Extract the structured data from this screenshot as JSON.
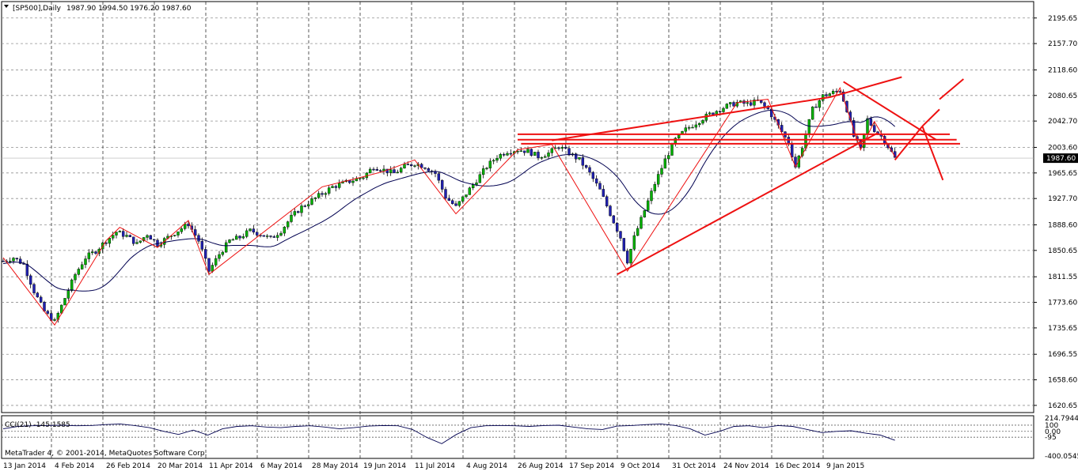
{
  "window": {
    "title": "[SP500],Daily",
    "ohlc": "1987.90 1994.50 1976.20 1987.60"
  },
  "indicator": {
    "label": "CCI(21) -145.1585",
    "scale_labels": [
      "214.7944",
      "100",
      "0.00",
      "-95",
      "-400.0545"
    ]
  },
  "footer": {
    "copyright": "MetaTrader 4, © 2001-2014, MetaQuotes Software Corp."
  },
  "colors": {
    "bull": "#00b000",
    "bear": "#2020b0",
    "trendline": "#ee1111",
    "ma": "#000050"
  },
  "chart_data": {
    "type": "line",
    "instrument": "SP500",
    "timeframe": "Daily",
    "last_price": 1987.6,
    "last_price_label": "1987.60",
    "price_ticks": [
      2195.65,
      2157.7,
      2118.6,
      2080.65,
      2042.7,
      2003.6,
      1965.65,
      1927.7,
      1888.6,
      1850.65,
      1811.55,
      1773.6,
      1735.65,
      1696.55,
      1658.6,
      1620.65
    ],
    "price_tick_labels": [
      "2195.65",
      "2157.70",
      "2118.60",
      "2080.65",
      "2042.70",
      "2003.60",
      "1965.65",
      "1927.70",
      "1888.60",
      "1850.65",
      "1811.55",
      "1773.60",
      "1735.65",
      "1696.55",
      "1658.60",
      "1620.65"
    ],
    "date_labels": [
      "13 Jan 2014",
      "4 Feb 2014",
      "26 Feb 2014",
      "20 Mar 2014",
      "11 Apr 2014",
      "6 May 2014",
      "28 May 2014",
      "19 Jun 2014",
      "11 Jul 2014",
      "4 Aug 2014",
      "26 Aug 2014",
      "17 Sep 2014",
      "9 Oct 2014",
      "31 Oct 2014",
      "24 Nov 2014",
      "16 Dec 2014",
      "9 Jan 2015"
    ],
    "close_series": [
      {
        "d": 0,
        "v": 1835
      },
      {
        "d": 3,
        "v": 1840
      },
      {
        "d": 6,
        "v": 1830
      },
      {
        "d": 9,
        "v": 1790
      },
      {
        "d": 12,
        "v": 1760
      },
      {
        "d": 15,
        "v": 1745
      },
      {
        "d": 18,
        "v": 1780
      },
      {
        "d": 21,
        "v": 1815
      },
      {
        "d": 24,
        "v": 1840
      },
      {
        "d": 27,
        "v": 1850
      },
      {
        "d": 30,
        "v": 1865
      },
      {
        "d": 33,
        "v": 1878
      },
      {
        "d": 36,
        "v": 1872
      },
      {
        "d": 39,
        "v": 1860
      },
      {
        "d": 42,
        "v": 1875
      },
      {
        "d": 45,
        "v": 1860
      },
      {
        "d": 48,
        "v": 1870
      },
      {
        "d": 51,
        "v": 1880
      },
      {
        "d": 54,
        "v": 1890
      },
      {
        "d": 57,
        "v": 1865
      },
      {
        "d": 60,
        "v": 1820
      },
      {
        "d": 63,
        "v": 1845
      },
      {
        "d": 66,
        "v": 1865
      },
      {
        "d": 69,
        "v": 1870
      },
      {
        "d": 72,
        "v": 1880
      },
      {
        "d": 75,
        "v": 1875
      },
      {
        "d": 78,
        "v": 1868
      },
      {
        "d": 81,
        "v": 1880
      },
      {
        "d": 84,
        "v": 1900
      },
      {
        "d": 87,
        "v": 1915
      },
      {
        "d": 90,
        "v": 1925
      },
      {
        "d": 93,
        "v": 1935
      },
      {
        "d": 96,
        "v": 1945
      },
      {
        "d": 99,
        "v": 1950
      },
      {
        "d": 102,
        "v": 1955
      },
      {
        "d": 105,
        "v": 1960
      },
      {
        "d": 108,
        "v": 1975
      },
      {
        "d": 111,
        "v": 1970
      },
      {
        "d": 114,
        "v": 1965
      },
      {
        "d": 117,
        "v": 1975
      },
      {
        "d": 120,
        "v": 1980
      },
      {
        "d": 123,
        "v": 1975
      },
      {
        "d": 126,
        "v": 1965
      },
      {
        "d": 129,
        "v": 1930
      },
      {
        "d": 132,
        "v": 1915
      },
      {
        "d": 135,
        "v": 1935
      },
      {
        "d": 138,
        "v": 1955
      },
      {
        "d": 141,
        "v": 1975
      },
      {
        "d": 144,
        "v": 1990
      },
      {
        "d": 147,
        "v": 1998
      },
      {
        "d": 150,
        "v": 2000
      },
      {
        "d": 153,
        "v": 1998
      },
      {
        "d": 156,
        "v": 1990
      },
      {
        "d": 159,
        "v": 1995
      },
      {
        "d": 162,
        "v": 2005
      },
      {
        "d": 165,
        "v": 1995
      },
      {
        "d": 168,
        "v": 1985
      },
      {
        "d": 171,
        "v": 1965
      },
      {
        "d": 174,
        "v": 1940
      },
      {
        "d": 177,
        "v": 1905
      },
      {
        "d": 180,
        "v": 1870
      },
      {
        "d": 182,
        "v": 1835
      },
      {
        "d": 184,
        "v": 1870
      },
      {
        "d": 187,
        "v": 1910
      },
      {
        "d": 190,
        "v": 1950
      },
      {
        "d": 193,
        "v": 1985
      },
      {
        "d": 196,
        "v": 2015
      },
      {
        "d": 199,
        "v": 2030
      },
      {
        "d": 202,
        "v": 2040
      },
      {
        "d": 205,
        "v": 2050
      },
      {
        "d": 208,
        "v": 2058
      },
      {
        "d": 211,
        "v": 2065
      },
      {
        "d": 214,
        "v": 2070
      },
      {
        "d": 217,
        "v": 2068
      },
      {
        "d": 220,
        "v": 2072
      },
      {
        "d": 223,
        "v": 2060
      },
      {
        "d": 226,
        "v": 2035
      },
      {
        "d": 229,
        "v": 2010
      },
      {
        "d": 231,
        "v": 1975
      },
      {
        "d": 233,
        "v": 2005
      },
      {
        "d": 236,
        "v": 2060
      },
      {
        "d": 239,
        "v": 2080
      },
      {
        "d": 242,
        "v": 2085
      },
      {
        "d": 244,
        "v": 2088
      },
      {
        "d": 246,
        "v": 2060
      },
      {
        "d": 248,
        "v": 2020
      },
      {
        "d": 250,
        "v": 2000
      },
      {
        "d": 252,
        "v": 2045
      },
      {
        "d": 254,
        "v": 2030
      },
      {
        "d": 256,
        "v": 2020
      },
      {
        "d": 258,
        "v": 2005
      },
      {
        "d": 260,
        "v": 1987.6
      }
    ],
    "cci_series": [
      40,
      80,
      90,
      95,
      100,
      90,
      95,
      110,
      120,
      95,
      60,
      0,
      -50,
      20,
      -60,
      40,
      80,
      90,
      70,
      60,
      80,
      90,
      70,
      40,
      60,
      85,
      95,
      90,
      30,
      -100,
      -200,
      -50,
      60,
      90,
      95,
      90,
      80,
      95,
      100,
      70,
      40,
      30,
      85,
      95,
      110,
      120,
      95,
      40,
      -60,
      0,
      80,
      90,
      60,
      95,
      80,
      30,
      -20,
      0,
      10,
      -30,
      -60,
      -145
    ],
    "cci_range": [
      -400.0545,
      214.7944
    ]
  }
}
